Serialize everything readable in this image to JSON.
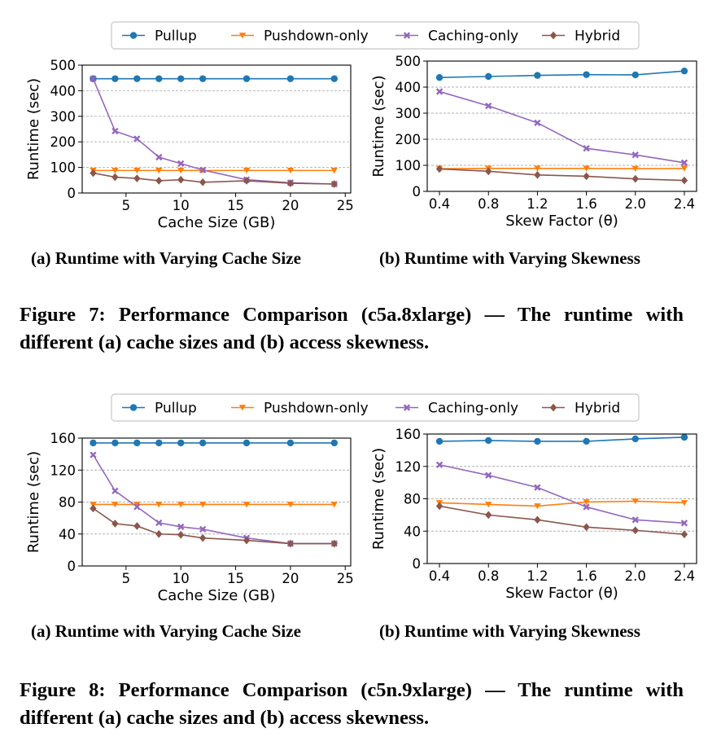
{
  "legend": [
    {
      "name": "Pullup",
      "color": "#1f77b4",
      "marker": "circle"
    },
    {
      "name": "Pushdown-only",
      "color": "#ff7f0e",
      "marker": "triangle-down"
    },
    {
      "name": "Caching-only",
      "color": "#9467bd",
      "marker": "x"
    },
    {
      "name": "Hybrid",
      "color": "#8c564b",
      "marker": "diamond"
    }
  ],
  "figures": [
    {
      "sub_a": "(a) Runtime with Varying Cache Size",
      "sub_b": "(b) Runtime with Varying Skewness",
      "caption": "Figure 7: Performance Comparison (c5a.8xlarge) — The runtime with different (a) cache sizes and (b) access skewness."
    },
    {
      "sub_a": "(a) Runtime with Varying Cache Size",
      "sub_b": "(b) Runtime with Varying Skewness",
      "caption": "Figure 8: Performance Comparison (c5n.9xlarge) — The runtime with different (a) cache sizes and (b) access skewness."
    }
  ],
  "chart_data": [
    {
      "type": "line",
      "figure": "Figure 7 (a)",
      "xlabel": "Cache Size (GB)",
      "ylabel": "Runtime (sec)",
      "x": [
        2,
        4,
        6,
        8,
        10,
        12,
        16,
        20,
        24
      ],
      "xlim": [
        1,
        25.5
      ],
      "ylim": [
        0,
        500
      ],
      "xticks": [
        5,
        10,
        15,
        20,
        25
      ],
      "yticks": [
        0,
        100,
        200,
        300,
        400,
        500
      ],
      "grid": "horizontal dashed",
      "series": [
        {
          "name": "Pullup",
          "values": [
            447,
            447,
            447,
            447,
            447,
            447,
            447,
            447,
            447
          ]
        },
        {
          "name": "Pushdown-only",
          "values": [
            88,
            88,
            88,
            88,
            88,
            88,
            88,
            88,
            88
          ]
        },
        {
          "name": "Caching-only",
          "values": [
            447,
            242,
            212,
            140,
            115,
            90,
            52,
            40,
            35
          ]
        },
        {
          "name": "Hybrid",
          "values": [
            78,
            62,
            57,
            48,
            52,
            42,
            48,
            38,
            35
          ]
        }
      ]
    },
    {
      "type": "line",
      "figure": "Figure 7 (b)",
      "xlabel": "Skew Factor (θ)",
      "ylabel": "Runtime (sec)",
      "x": [
        0.4,
        0.8,
        1.2,
        1.6,
        2.0,
        2.4
      ],
      "xlim": [
        0.3,
        2.5
      ],
      "ylim": [
        0,
        500
      ],
      "xticks": [
        0.4,
        0.8,
        1.2,
        1.6,
        2.0,
        2.4
      ],
      "yticks": [
        0,
        100,
        200,
        300,
        400,
        500
      ],
      "grid": "horizontal dashed",
      "series": [
        {
          "name": "Pullup",
          "values": [
            437,
            441,
            445,
            448,
            447,
            462
          ]
        },
        {
          "name": "Pushdown-only",
          "values": [
            87,
            88,
            88,
            88,
            87,
            88
          ]
        },
        {
          "name": "Caching-only",
          "values": [
            383,
            328,
            263,
            165,
            140,
            110
          ]
        },
        {
          "name": "Hybrid",
          "values": [
            86,
            77,
            63,
            58,
            48,
            42
          ]
        }
      ]
    },
    {
      "type": "line",
      "figure": "Figure 8 (a)",
      "xlabel": "Cache Size (GB)",
      "ylabel": "Runtime (sec)",
      "x": [
        2,
        4,
        6,
        8,
        10,
        12,
        16,
        20,
        24
      ],
      "xlim": [
        1,
        25.5
      ],
      "ylim": [
        0,
        160
      ],
      "xticks": [
        5,
        10,
        15,
        20,
        25
      ],
      "yticks": [
        0,
        40,
        80,
        120,
        160
      ],
      "grid": "horizontal dashed",
      "series": [
        {
          "name": "Pullup",
          "values": [
            154,
            154,
            154,
            154,
            154,
            154,
            154,
            154,
            154
          ]
        },
        {
          "name": "Pushdown-only",
          "values": [
            77,
            77,
            77,
            77,
            77,
            77,
            77,
            77,
            77
          ]
        },
        {
          "name": "Caching-only",
          "values": [
            139,
            94,
            74,
            54,
            49,
            46,
            35,
            28,
            28
          ]
        },
        {
          "name": "Hybrid",
          "values": [
            72,
            53,
            50,
            40,
            39,
            35,
            32,
            28,
            28
          ]
        }
      ]
    },
    {
      "type": "line",
      "figure": "Figure 8 (b)",
      "xlabel": "Skew Factor (θ)",
      "ylabel": "Runtime (sec)",
      "x": [
        0.4,
        0.8,
        1.2,
        1.6,
        2.0,
        2.4
      ],
      "xlim": [
        0.3,
        2.5
      ],
      "ylim": [
        0,
        160
      ],
      "xticks": [
        0.4,
        0.8,
        1.2,
        1.6,
        2.0,
        2.4
      ],
      "yticks": [
        0,
        40,
        80,
        120,
        160
      ],
      "grid": "horizontal dashed",
      "series": [
        {
          "name": "Pullup",
          "values": [
            151,
            152,
            151,
            151,
            154,
            156
          ]
        },
        {
          "name": "Pushdown-only",
          "values": [
            75,
            73,
            71,
            76,
            77,
            75
          ]
        },
        {
          "name": "Caching-only",
          "values": [
            122,
            109,
            94,
            70,
            54,
            50
          ]
        },
        {
          "name": "Hybrid",
          "values": [
            71,
            60,
            54,
            45,
            41,
            36
          ]
        }
      ]
    }
  ]
}
